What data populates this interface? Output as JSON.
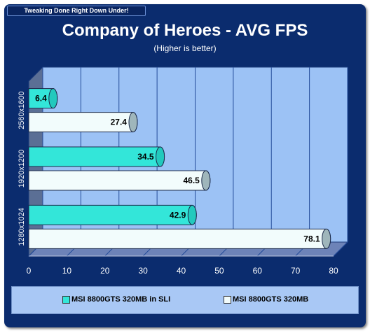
{
  "banner": "Tweaking Done Right Down Under!",
  "chart_data": {
    "type": "bar",
    "orientation": "horizontal",
    "title": "Company of Heroes - AVG FPS",
    "subtitle": "(Higher is better)",
    "categories": [
      "2560x1600",
      "1920x1200",
      "1280x1024"
    ],
    "series": [
      {
        "name": "MSI 8800GTS 320MB in SLI",
        "values": [
          6.4,
          34.5,
          42.9
        ],
        "color": "#33e6d9"
      },
      {
        "name": "MSI 8800GTS 320MB",
        "values": [
          27.4,
          46.5,
          78.1
        ],
        "color": "#f2fcfc"
      }
    ],
    "xlim": [
      0,
      80
    ],
    "xticks": [
      0,
      10,
      20,
      30,
      40,
      50,
      60,
      70,
      80
    ],
    "grid": true,
    "legend_position": "bottom"
  },
  "colors": {
    "background": "#0b2c6e",
    "plot_back": "#9cc2f5",
    "plot_floor": "#6d83b8",
    "plot_wall": "#5b6f95"
  }
}
